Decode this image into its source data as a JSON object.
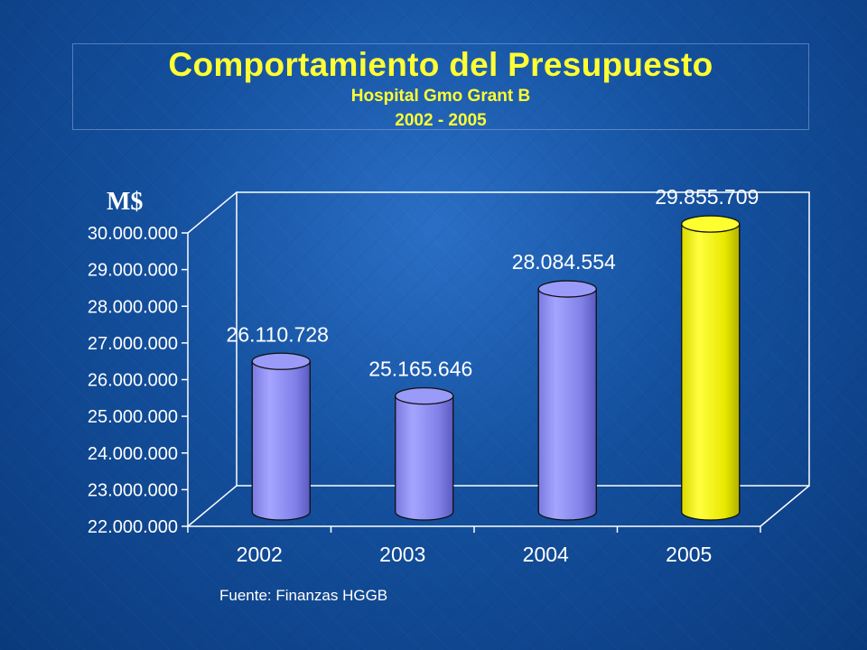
{
  "title": "Comportamiento del Presupuesto",
  "subtitle": "Hospital Gmo Grant B",
  "period": "2002 - 2005",
  "unit_label": "M$",
  "source": "Fuente: Finanzas HGGB",
  "colors": {
    "background": "#14509e",
    "title": "#ffff33",
    "bar_default": "#8c8cf0",
    "bar_highlight": "#ffff1a",
    "axis": "#ffffff"
  },
  "chart_data": {
    "type": "bar",
    "style": "3d-cylinder",
    "categories": [
      "2002",
      "2003",
      "2004",
      "2005"
    ],
    "values": [
      26110728,
      25165646,
      28084554,
      29855709
    ],
    "value_labels": [
      "26.110.728",
      "25.165.646",
      "28.084.554",
      "29.855.709"
    ],
    "highlight_category": "2005",
    "ylim": [
      22000000,
      30000000
    ],
    "yticks": [
      22000000,
      23000000,
      24000000,
      25000000,
      26000000,
      27000000,
      28000000,
      29000000,
      30000000
    ],
    "ytick_labels": [
      "22.000.000",
      "23.000.000",
      "24.000.000",
      "25.000.000",
      "26.000.000",
      "27.000.000",
      "28.000.000",
      "29.000.000",
      "30.000.000"
    ],
    "ylabel": "M$",
    "grid": false
  }
}
